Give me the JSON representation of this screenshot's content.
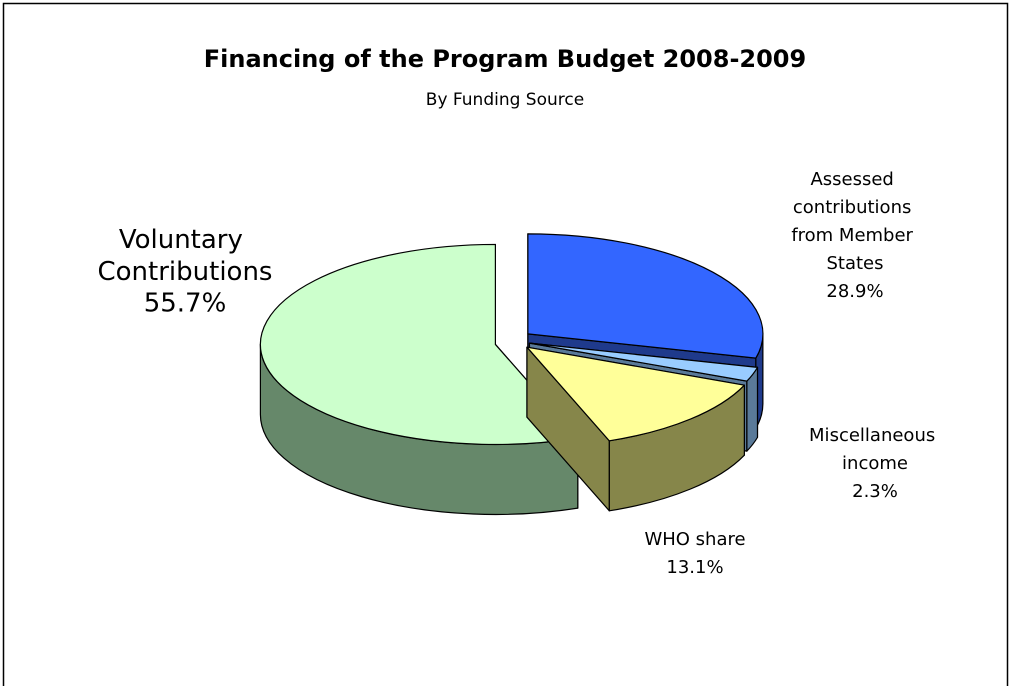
{
  "chart_data": {
    "type": "pie",
    "title": "Financing of the Program Budget 2008-2009",
    "subtitle": "By Funding Source",
    "categories": [
      "Assessed contributions from Member States",
      "Miscellaneous income",
      "WHO share",
      "Voluntary Contributions"
    ],
    "values": [
      28.9,
      2.3,
      13.1,
      55.7
    ],
    "value_labels": [
      "28.9%",
      "2.3%",
      "13.1%",
      "55.7%"
    ],
    "colors": [
      "#3366ff",
      "#99ccff",
      "#ffff99",
      "#ccffcc"
    ],
    "side_colors": [
      "#1f3a8c",
      "#5a7a99",
      "#86864a",
      "#66886a"
    ]
  }
}
